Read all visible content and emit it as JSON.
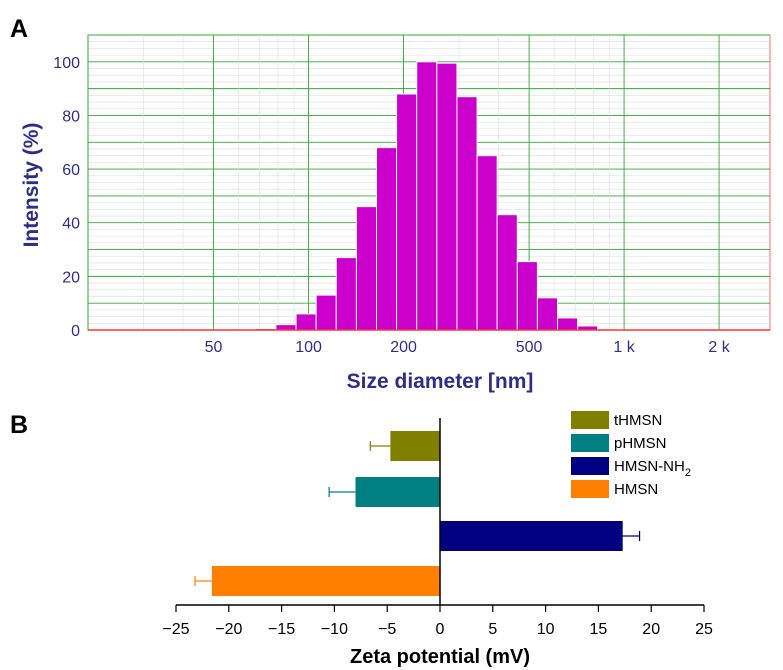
{
  "chart_data": [
    {
      "panel": "A",
      "type": "bar",
      "xlabel": "Size diameter [nm]",
      "ylabel": "Intensity (%)",
      "xscale": "log",
      "xlim": [
        20,
        2900
      ],
      "ylim": [
        0,
        110
      ],
      "x_ticks": [
        50,
        100,
        200,
        500,
        1000,
        2000
      ],
      "x_tick_labels": [
        "50",
        "100",
        "200",
        "500",
        "1 k",
        "2 k"
      ],
      "y_ticks": [
        0,
        20,
        40,
        60,
        80,
        100
      ],
      "grid": true,
      "bar_color": "#cc00cc",
      "bins": [
        {
          "x0": 50.8,
          "x1": 58.8,
          "value": 0.4
        },
        {
          "x0": 68.1,
          "x1": 78.8,
          "value": 0.5
        },
        {
          "x0": 78.8,
          "x1": 91.3,
          "value": 2
        },
        {
          "x0": 91.3,
          "x1": 105.7,
          "value": 6
        },
        {
          "x0": 105.7,
          "x1": 122.4,
          "value": 13
        },
        {
          "x0": 122.4,
          "x1": 141.8,
          "value": 27
        },
        {
          "x0": 141.8,
          "x1": 164.2,
          "value": 46
        },
        {
          "x0": 164.2,
          "x1": 190.1,
          "value": 68
        },
        {
          "x0": 190.1,
          "x1": 220.2,
          "value": 88
        },
        {
          "x0": 220.2,
          "x1": 255,
          "value": 100
        },
        {
          "x0": 255,
          "x1": 295.3,
          "value": 99.5
        },
        {
          "x0": 295.3,
          "x1": 342,
          "value": 87
        },
        {
          "x0": 342,
          "x1": 396,
          "value": 65
        },
        {
          "x0": 396,
          "x1": 458.7,
          "value": 43
        },
        {
          "x0": 458.7,
          "x1": 531.2,
          "value": 25.5
        },
        {
          "x0": 531.2,
          "x1": 615.1,
          "value": 12
        },
        {
          "x0": 615.1,
          "x1": 712.4,
          "value": 4.5
        },
        {
          "x0": 712.4,
          "x1": 825,
          "value": 1.5
        },
        {
          "x0": 825,
          "x1": 955.4,
          "value": 0.4
        }
      ]
    },
    {
      "panel": "B",
      "type": "bar",
      "orientation": "horizontal",
      "xlabel": "Zeta potential (mV)",
      "xlim": [
        -25,
        25
      ],
      "x_ticks": [
        -25,
        -20,
        -15,
        -10,
        -5,
        0,
        5,
        10,
        15,
        20,
        25
      ],
      "x_tick_labels": [
        "−25",
        "−20",
        "−15",
        "−10",
        "−5",
        "0",
        "5",
        "10",
        "15",
        "20",
        "25"
      ],
      "grid": false,
      "legend_position": "top-right",
      "series": [
        {
          "name": "tHMSN",
          "value": -4.7,
          "error": 1.9,
          "color": "#808000"
        },
        {
          "name": "pHMSN",
          "value": -8,
          "error": 2.5,
          "color": "#008080"
        },
        {
          "name_parts": [
            "HMSN-NH",
            "2"
          ],
          "value": 17.3,
          "error": 1.6,
          "color": "#000080"
        },
        {
          "name": "HMSN",
          "value": -21.6,
          "error": 1.6,
          "color": "#ff8000"
        }
      ]
    }
  ],
  "labels": {
    "panel_a": "A",
    "panel_b": "B"
  }
}
